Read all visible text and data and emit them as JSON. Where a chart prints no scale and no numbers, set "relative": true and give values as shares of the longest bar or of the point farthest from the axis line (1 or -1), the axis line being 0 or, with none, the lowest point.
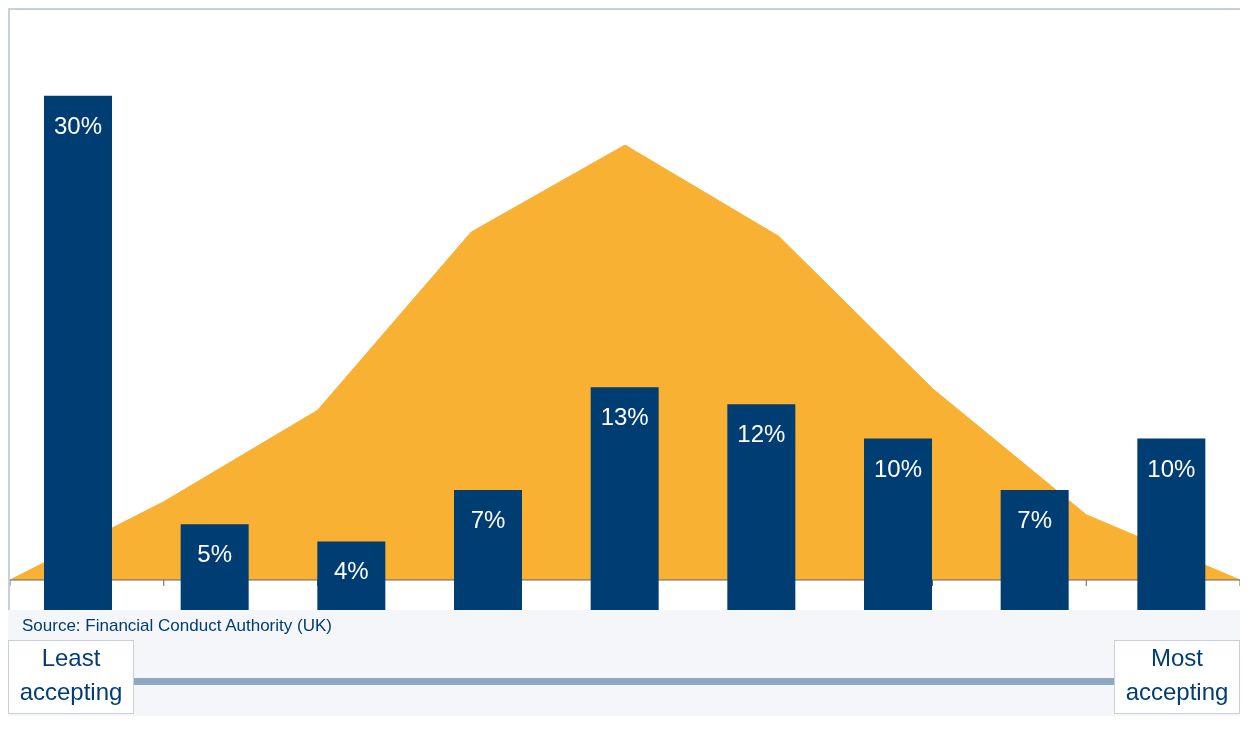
{
  "chart_data": [
    {
      "type": "area",
      "relative": true,
      "categories": [
        null,
        null,
        null,
        null,
        null,
        null,
        null,
        null,
        null
      ],
      "color": "#f8b133",
      "values": [
        0,
        0.18,
        0.39,
        0.8,
        1,
        0.79,
        0.44,
        0.15,
        0
      ]
    },
    {
      "type": "bar",
      "categories": [
        null,
        null,
        null,
        null,
        null,
        null,
        null,
        null,
        null
      ],
      "color": "#003d73",
      "values": [
        30,
        5,
        4,
        7,
        13,
        12,
        10,
        7,
        10
      ],
      "value_labels": [
        "30%",
        "5%",
        "4%",
        "7%",
        "13%",
        "12%",
        "10%",
        "7%",
        "10%"
      ],
      "ylim": [
        0,
        35
      ],
      "tick_labels": false,
      "annotations": [
        "Source: Financial Conduct Authority (UK)",
        "Least accepting",
        "Most accepting"
      ]
    }
  ]
}
